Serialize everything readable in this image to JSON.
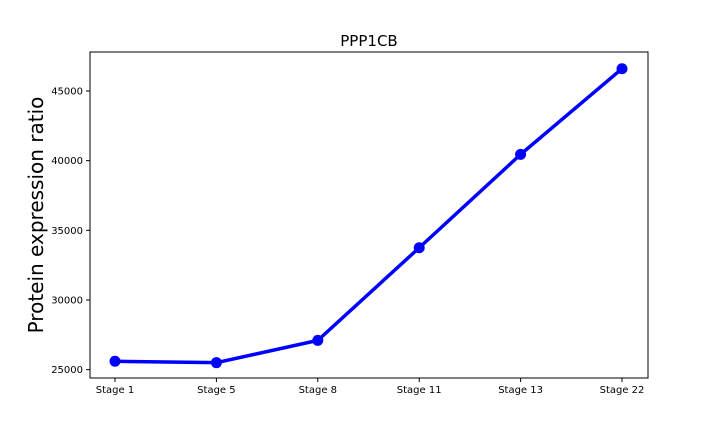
{
  "chart_data": {
    "type": "line",
    "title": "PPP1CB",
    "xlabel": "",
    "ylabel": "Protein expression ratio",
    "categories": [
      "Stage 1",
      "Stage 5",
      "Stage 8",
      "Stage 11",
      "Stage 13",
      "Stage 22"
    ],
    "series": [
      {
        "values": [
          25600,
          25500,
          27100,
          33750,
          40450,
          46600
        ],
        "color": "#0000ff"
      }
    ],
    "yticks": [
      25000,
      30000,
      35000,
      40000,
      45000
    ],
    "ylim": [
      24400,
      47800
    ],
    "grid": false,
    "legend": "none"
  }
}
